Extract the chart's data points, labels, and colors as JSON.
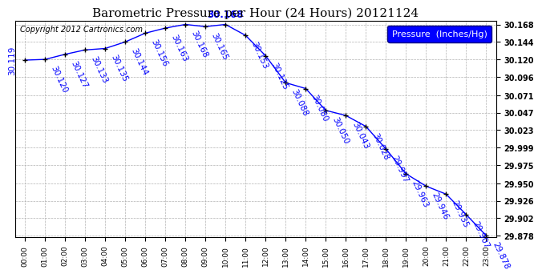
{
  "title": "Barometric Pressure per Hour (24 Hours) 20121124",
  "copyright": "Copyright 2012 Cartronics.com",
  "legend_label": "Pressure  (Inches/Hg)",
  "hours": [
    "00:00",
    "01:00",
    "02:00",
    "03:00",
    "04:00",
    "05:00",
    "06:00",
    "07:00",
    "08:00",
    "09:00",
    "10:00",
    "11:00",
    "12:00",
    "13:00",
    "14:00",
    "15:00",
    "16:00",
    "17:00",
    "18:00",
    "19:00",
    "20:00",
    "21:00",
    "22:00",
    "23:00"
  ],
  "pressures": [
    30.119,
    30.12,
    30.127,
    30.133,
    30.135,
    30.144,
    30.156,
    30.163,
    30.168,
    30.165,
    30.168,
    30.153,
    30.125,
    30.088,
    30.08,
    30.05,
    30.043,
    30.028,
    29.997,
    29.963,
    29.946,
    29.935,
    29.907,
    29.878
  ],
  "ylim_min": 29.878,
  "ylim_max": 30.168,
  "line_color": "blue",
  "marker": "+",
  "marker_color": "black",
  "grid_color": "#aaaaaa",
  "bg_color": "white",
  "title_fontsize": 11,
  "annotation_fontsize": 7.5,
  "copyright_fontsize": 7,
  "legend_fontsize": 8,
  "ytick_values": [
    29.878,
    29.902,
    29.926,
    29.95,
    29.975,
    29.999,
    30.023,
    30.047,
    30.071,
    30.096,
    30.12,
    30.144,
    30.168
  ],
  "peak_index": 10,
  "peak_label_index": 8,
  "first_label_vertical": true
}
